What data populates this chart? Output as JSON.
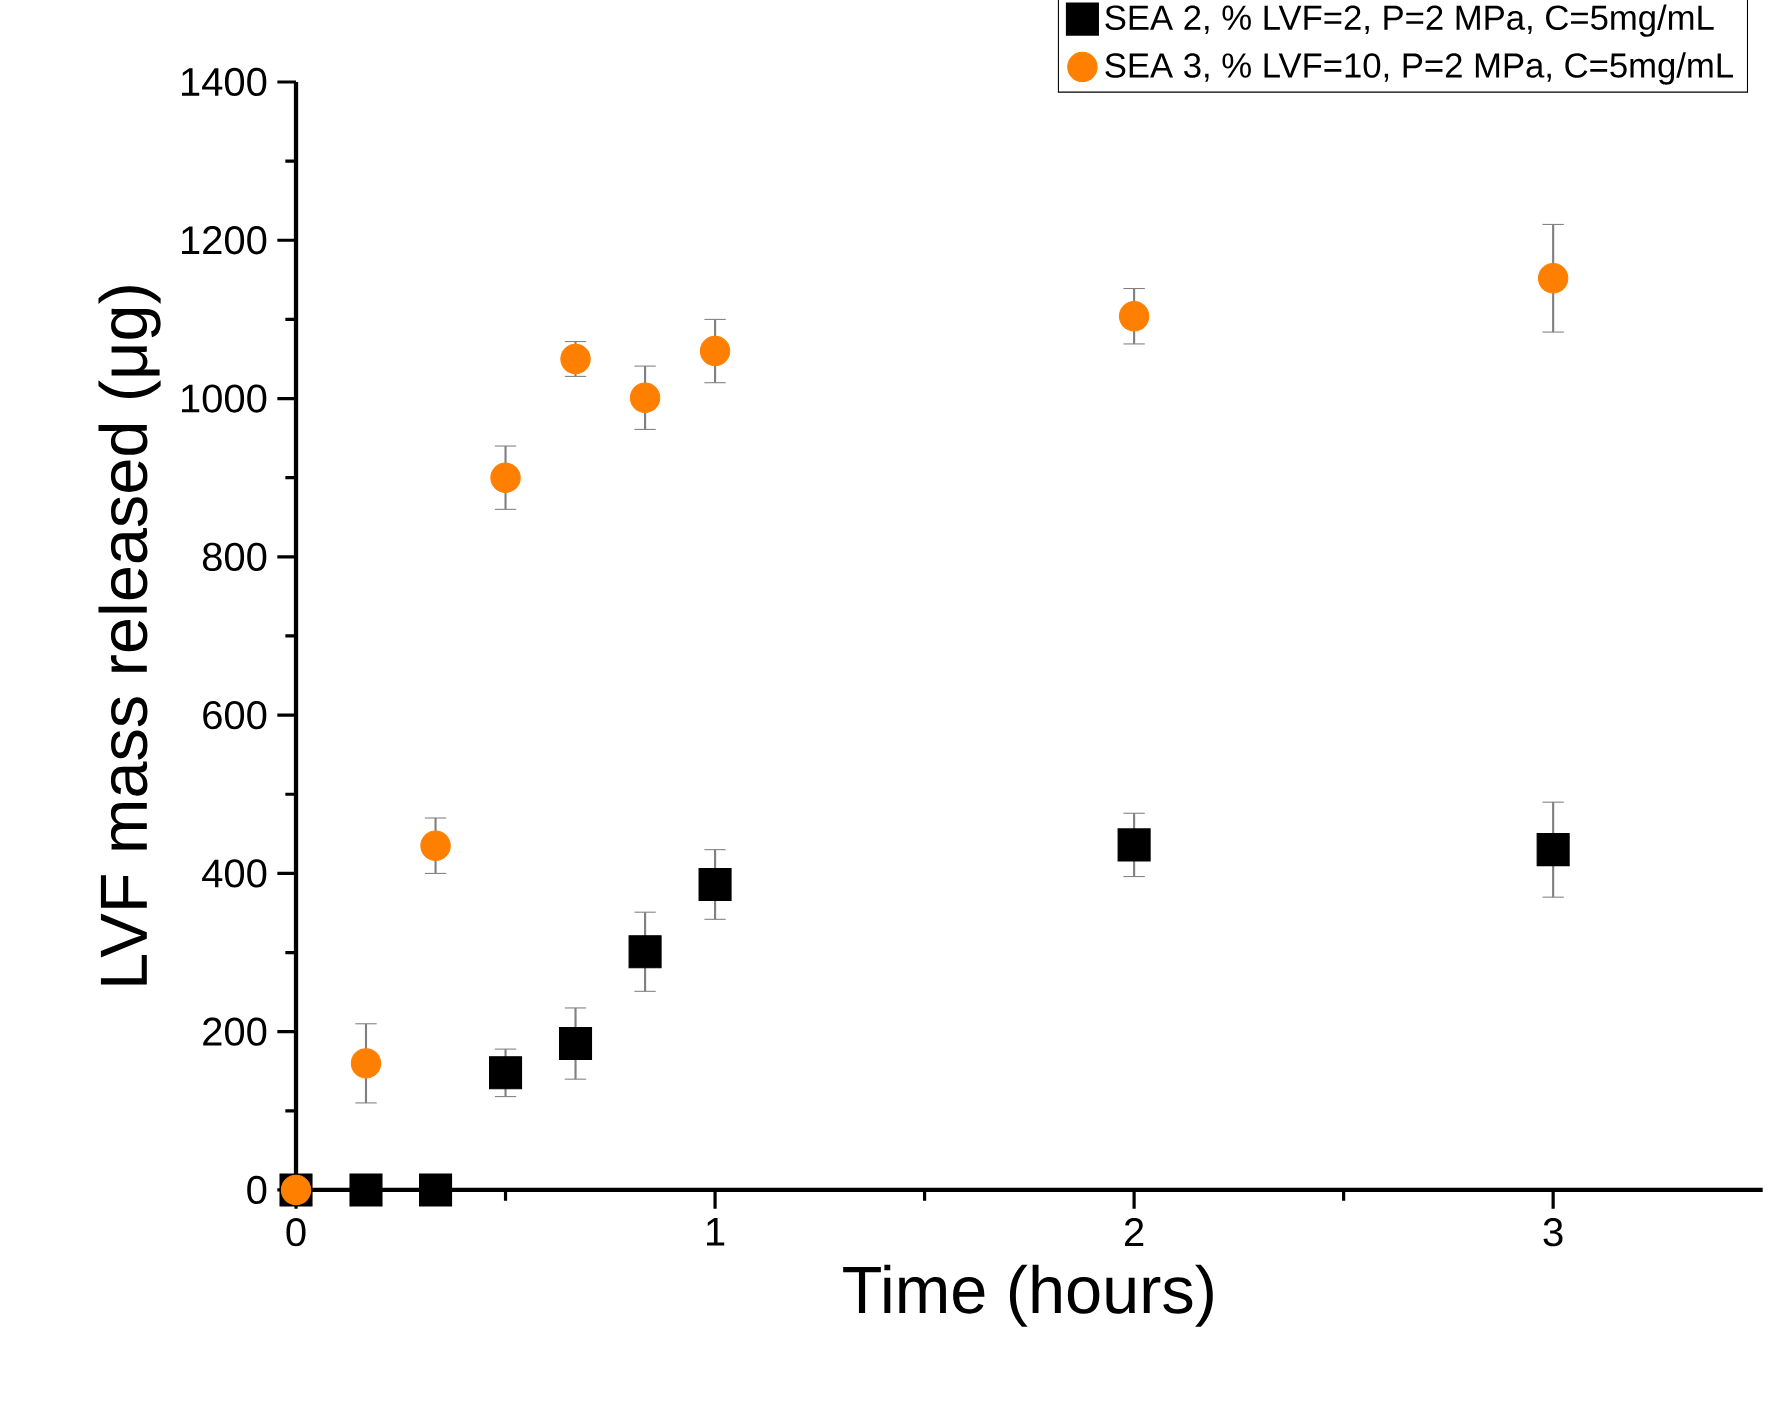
{
  "chart_data": {
    "type": "scatter",
    "xlabel": "Time (hours)",
    "ylabel": "LVF mass released (μg)",
    "xlim": [
      0,
      3.5
    ],
    "xticks": [
      0,
      1,
      2,
      3
    ],
    "ylim": [
      0,
      1400
    ],
    "yticks": [
      0,
      200,
      400,
      600,
      800,
      1000,
      1200,
      1400
    ],
    "legend": "top right",
    "grid": false,
    "series": [
      {
        "name": "SEA 2, % LVF=2, P=2 MPa, C=5mg/mL",
        "color": "#000000",
        "marker": "square",
        "x": [
          0,
          0.167,
          0.333,
          0.5,
          0.667,
          0.833,
          1,
          2,
          3
        ],
        "values": [
          0,
          0,
          0,
          148,
          185,
          301,
          386,
          436,
          430
        ],
        "errors": [
          null,
          null,
          null,
          30,
          45,
          50,
          44,
          40,
          60
        ]
      },
      {
        "name": "SEA 3, % LVF=10,  P=2 MPa, C=5mg/mL",
        "color": "#ff8000",
        "marker": "circle",
        "x": [
          0,
          0.167,
          0.333,
          0.5,
          0.667,
          0.833,
          1,
          2,
          3
        ],
        "values": [
          0,
          160,
          435,
          900,
          1050,
          1001,
          1060,
          1104,
          1152
        ],
        "errors": [
          null,
          50,
          35,
          40,
          22,
          40,
          40,
          35,
          68
        ]
      }
    ]
  }
}
